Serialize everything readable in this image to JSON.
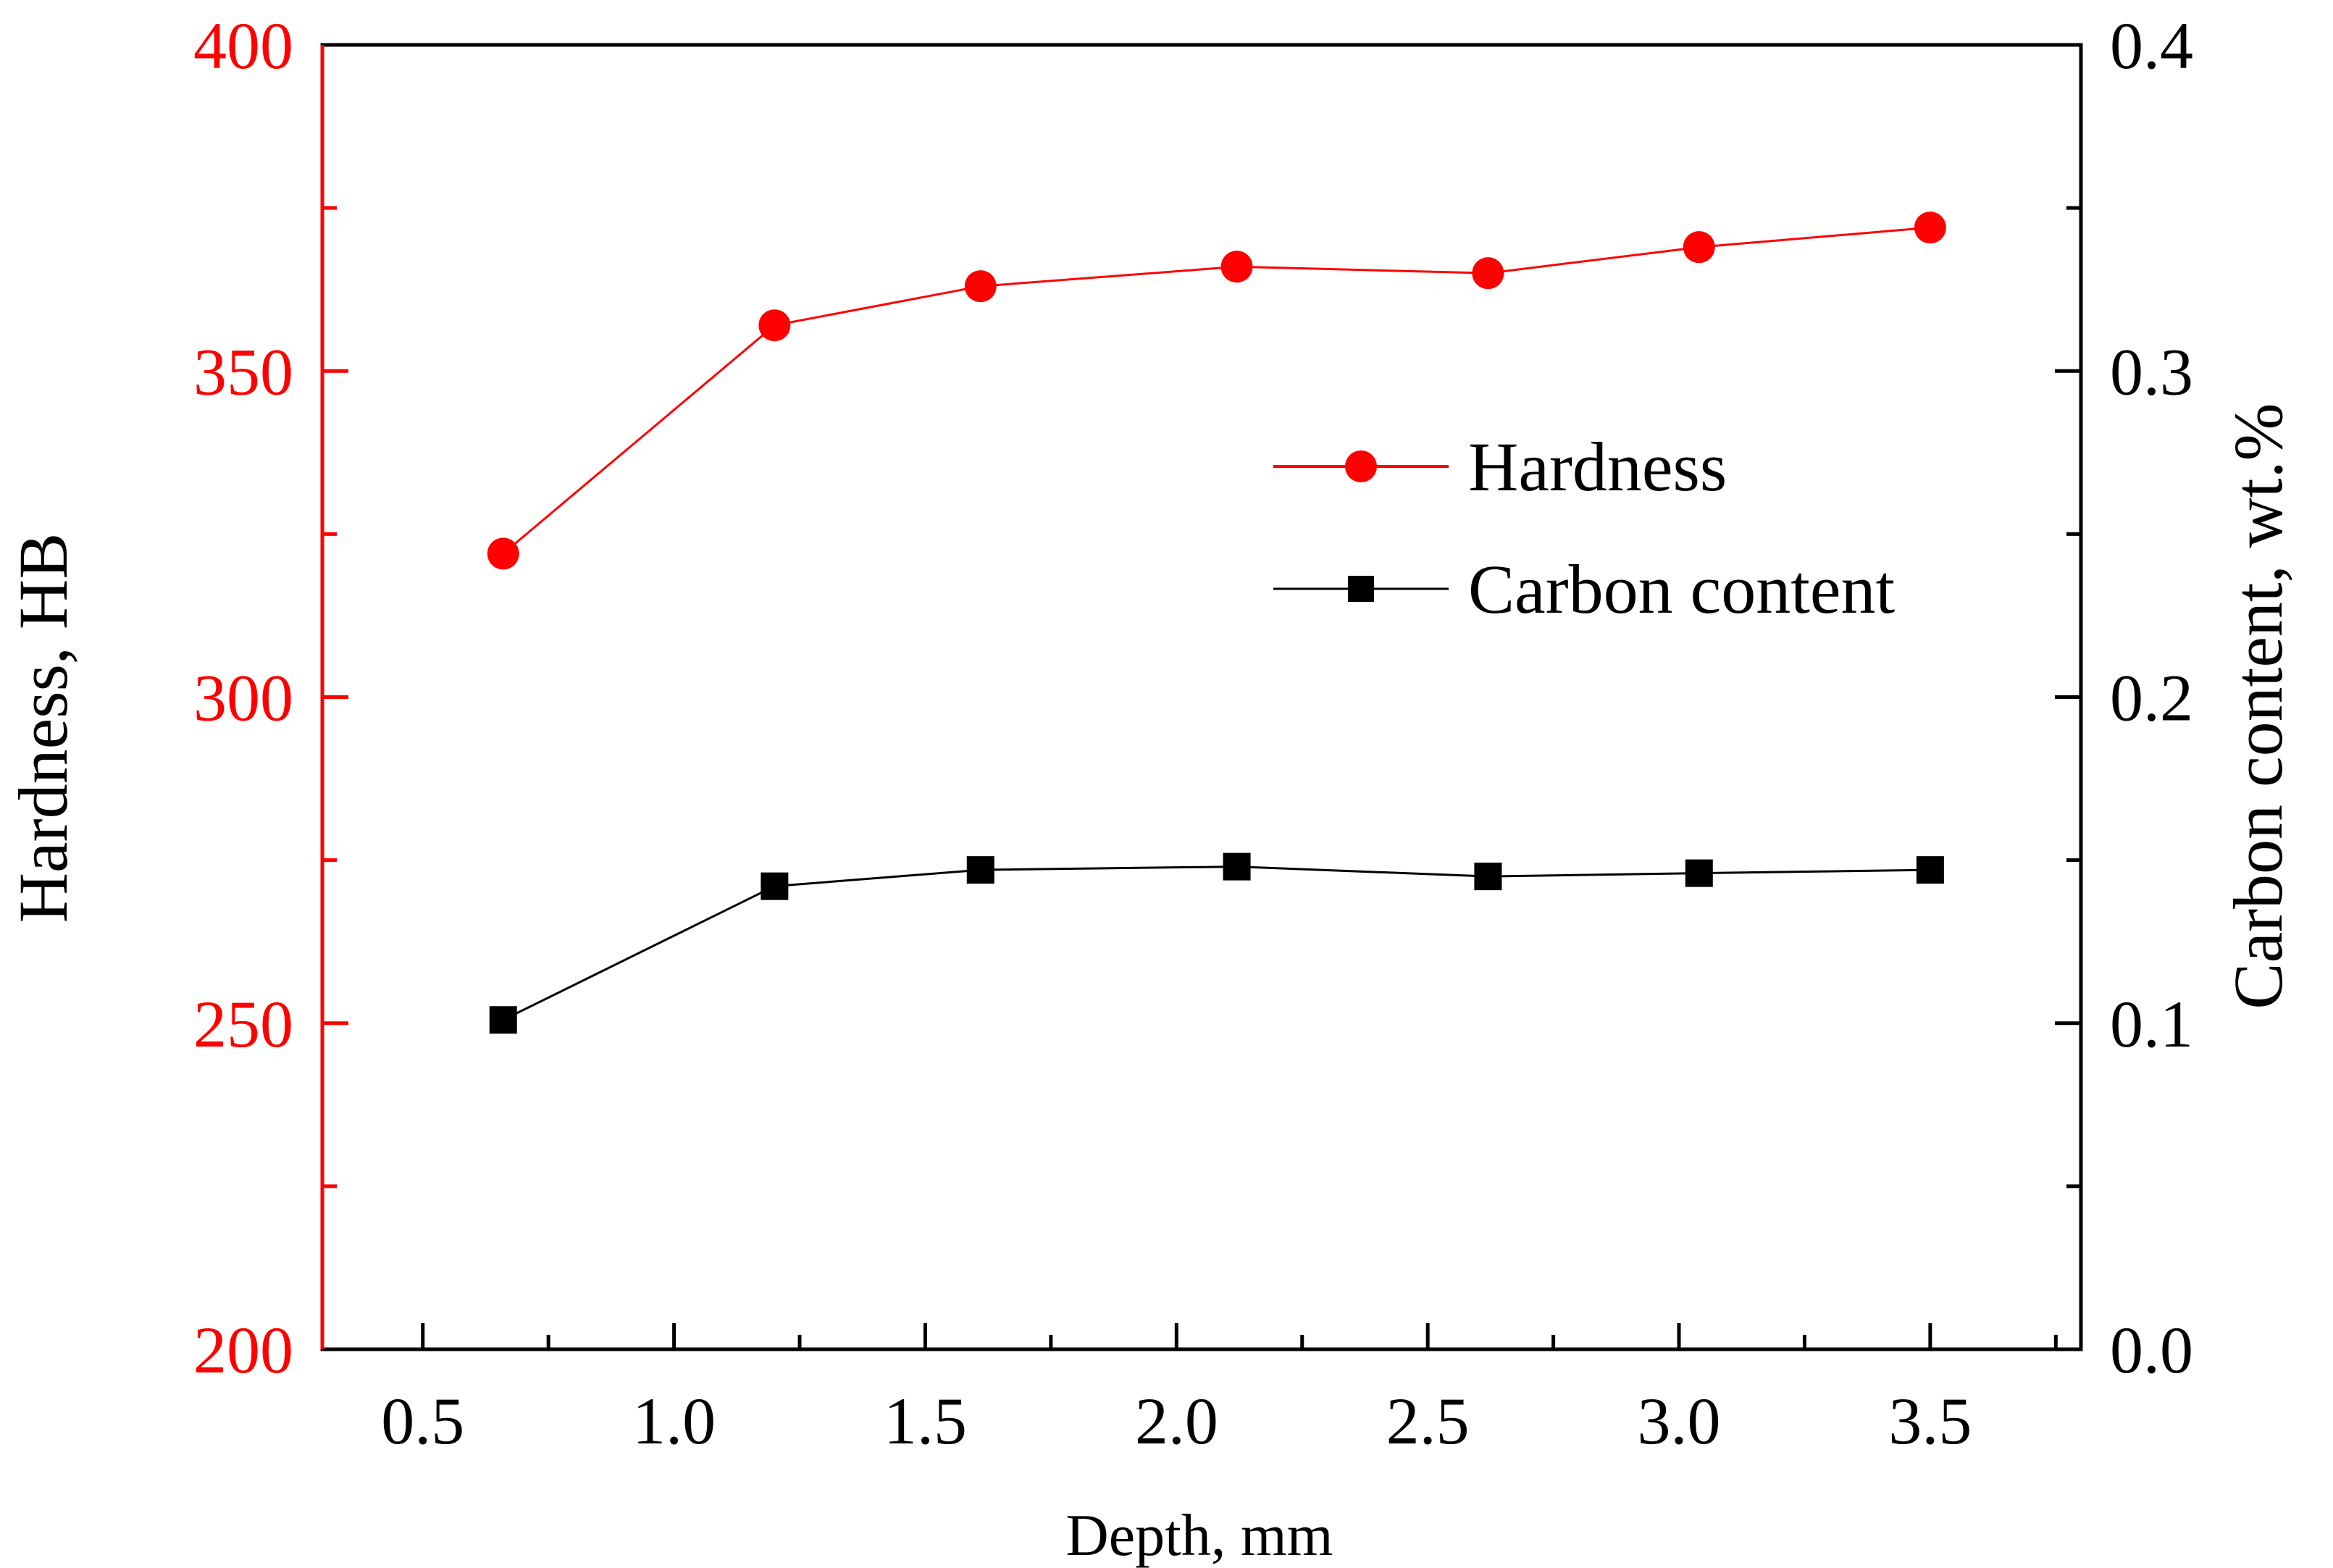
{
  "chart_data": {
    "type": "line",
    "title": "",
    "xlabel": "Depth, mm",
    "ylabel": "Hardness, HB",
    "y2label": "Carbon content, wt.%",
    "xlim": [
      0.3,
      3.8
    ],
    "ylim": [
      200,
      400
    ],
    "y2lim": [
      0.0,
      0.4
    ],
    "x_ticks": [
      "0.5",
      "1.0",
      "1.5",
      "2.0",
      "2.5",
      "3.0",
      "3.5"
    ],
    "y_ticks": [
      "200",
      "250",
      "300",
      "350",
      "400"
    ],
    "y2_ticks": [
      "0.0",
      "0.1",
      "0.2",
      "0.3",
      "0.4"
    ],
    "grid": false,
    "legend_position": "upper-right",
    "series": [
      {
        "name": "Hardness",
        "axis": "left",
        "color": "#ff0000",
        "marker": "circle",
        "x": [
          0.66,
          1.2,
          1.61,
          2.12,
          2.62,
          3.04,
          3.5
        ],
        "values": [
          322,
          357,
          363,
          366,
          365,
          369,
          372
        ]
      },
      {
        "name": "Carbon content",
        "axis": "right",
        "color": "#000000",
        "marker": "square",
        "x": [
          0.66,
          1.2,
          1.61,
          2.12,
          2.62,
          3.04,
          3.5
        ],
        "values": [
          0.101,
          0.142,
          0.147,
          0.148,
          0.145,
          0.146,
          0.147
        ]
      }
    ]
  }
}
